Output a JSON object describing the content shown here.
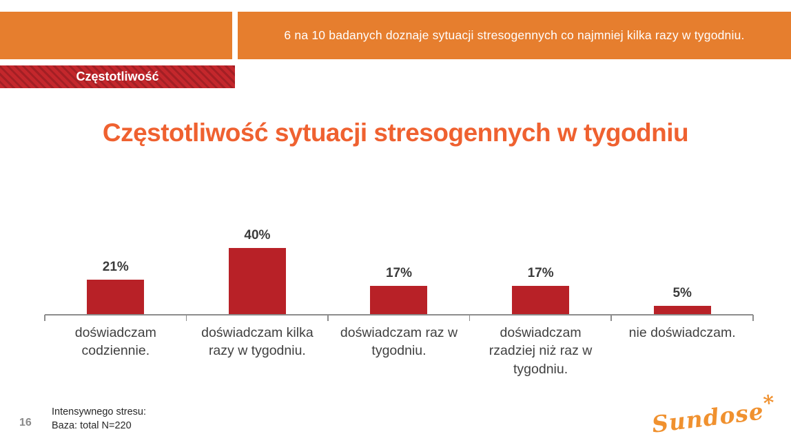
{
  "header": {
    "banner_text": "6 na 10 badanych doznaje sytuacji stresogennych co najmniej kilka razy w tygodniu.",
    "ribbon_label": "Częstotliwość",
    "orange": "#E67E2E",
    "ribbon_red": "#C4272C",
    "ribbon_stripe": "#A31F24"
  },
  "title": "Częstotliwość sytuacji stresogennych w tygodniu",
  "chart_data": {
    "type": "bar",
    "title": "Częstotliwość sytuacji stresogennych w tygodniu",
    "categories": [
      "doświadczam codziennie.",
      "doświadczam kilka razy w tygodniu.",
      "doświadczam raz w tygodniu.",
      "doświadczam rzadziej niż raz w tygodniu.",
      "nie doświadczam."
    ],
    "values": [
      21,
      40,
      17,
      17,
      5
    ],
    "data_labels": [
      "21%",
      "40%",
      "17%",
      "17%",
      "5%"
    ],
    "xlabel": "",
    "ylabel": "",
    "ylim": [
      0,
      45
    ],
    "grid": false,
    "legend": false,
    "bar_color": "#B82127",
    "axis_color": "#8C8C8C"
  },
  "footer": {
    "page_number": "16",
    "note_line1": "Intensywnego stresu:",
    "note_line2": "Baza: total N=220",
    "logo_text": "Sundose",
    "logo_mark": "*"
  }
}
